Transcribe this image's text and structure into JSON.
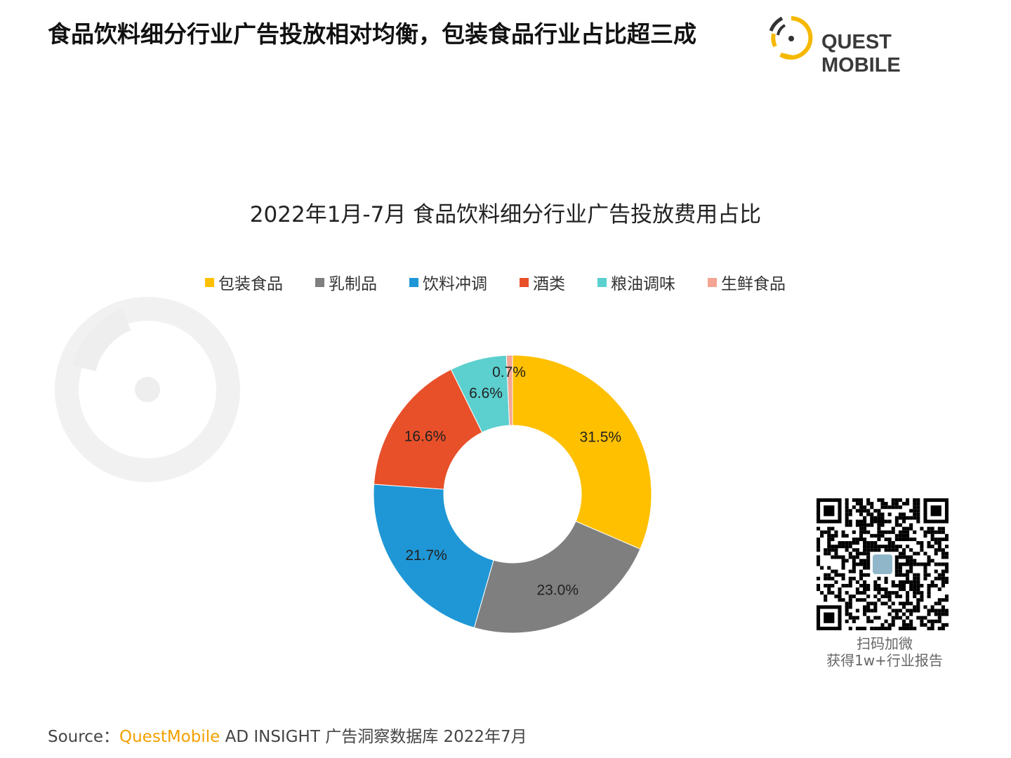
{
  "header": {
    "title": "食品饮料细分行业广告投放相对均衡，包装食品行业占比超三成",
    "logo_text": "QUEST MOBILE"
  },
  "chart_data": {
    "type": "pie",
    "donut": true,
    "title": "2022年1月-7月 食品饮料细分行业广告投放费用占比",
    "legend_position": "top",
    "categories": [
      "包装食品",
      "乳制品",
      "饮料冲调",
      "酒类",
      "粮油调味",
      "生鲜食品"
    ],
    "values": [
      31.5,
      23.0,
      21.7,
      16.6,
      6.6,
      0.7
    ],
    "data_labels": [
      "31.5%",
      "23.0%",
      "21.7%",
      "16.6%",
      "6.6%",
      "0.7%"
    ],
    "colors": [
      "#FFC000",
      "#7F7F7F",
      "#1F97D6",
      "#E8502A",
      "#5CCFCF",
      "#F4A593"
    ]
  },
  "qr": {
    "caption_line1": "扫码加微",
    "caption_line2": "获得1w+行业报告"
  },
  "footer": {
    "source_label": "Source：",
    "source_brand": "QuestMobile",
    "source_text": " AD INSIGHT 广告洞察数据库 2022年7月"
  }
}
